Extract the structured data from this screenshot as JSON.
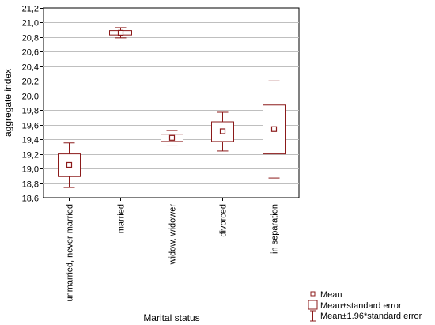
{
  "chart_data": {
    "type": "box",
    "xlabel": "Marital status",
    "ylabel": "aggregate index",
    "ylim": [
      18.6,
      21.2
    ],
    "yticks": [
      "18,6",
      "18,8",
      "19,0",
      "19,2",
      "19,4",
      "19,6",
      "19,8",
      "20,0",
      "20,2",
      "20,4",
      "20,6",
      "20,8",
      "21,0",
      "21,2"
    ],
    "grid": true,
    "categories": [
      "unmarried, never married",
      "married",
      "widow, widower",
      "divorced",
      "in separation"
    ],
    "mean": [
      19.05,
      20.86,
      19.42,
      19.51,
      19.54
    ],
    "se_low": [
      18.89,
      20.83,
      19.37,
      19.37,
      19.2
    ],
    "se_high": [
      19.2,
      20.89,
      19.47,
      19.64,
      19.87
    ],
    "ci_low": [
      18.74,
      20.79,
      19.32,
      19.24,
      18.87
    ],
    "ci_high": [
      19.35,
      20.93,
      19.52,
      19.77,
      20.2
    ],
    "color": "#8b1a1a",
    "legend": {
      "position": "bottom-right",
      "items": [
        "Mean",
        "Mean±standard error",
        "Mean±1.96*standard error"
      ]
    }
  }
}
